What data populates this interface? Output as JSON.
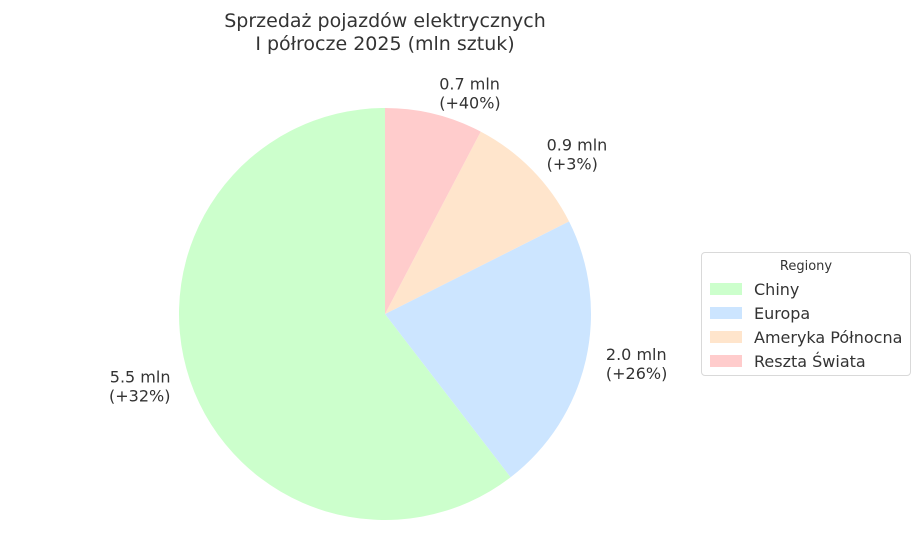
{
  "chart_data": {
    "type": "pie",
    "title": "Sprzedaż pojazdów elektrycznych\nI półrocze 2025 (mln sztuk)",
    "title_lines": [
      "Sprzedaż pojazdów elektrycznych",
      "I półrocze 2025 (mln sztuk)"
    ],
    "categories": [
      "Chiny",
      "Europa",
      "Ameryka Północna",
      "Reszta Świata"
    ],
    "values": [
      5.5,
      2.0,
      0.9,
      0.7
    ],
    "labels": [
      [
        "5.5 mln",
        "(+32%)"
      ],
      [
        "2.0 mln",
        "(+26%)"
      ],
      [
        "0.9 mln",
        "(+3%)"
      ],
      [
        "0.7 mln",
        "(+40%)"
      ]
    ],
    "colors": [
      "#ccffcc",
      "#cce5ff",
      "#ffe5cc",
      "#ffcccc"
    ],
    "start_angle_deg": 90,
    "direction": "counterclockwise",
    "legend": {
      "title": "Regiony",
      "placement": "center-right"
    }
  }
}
